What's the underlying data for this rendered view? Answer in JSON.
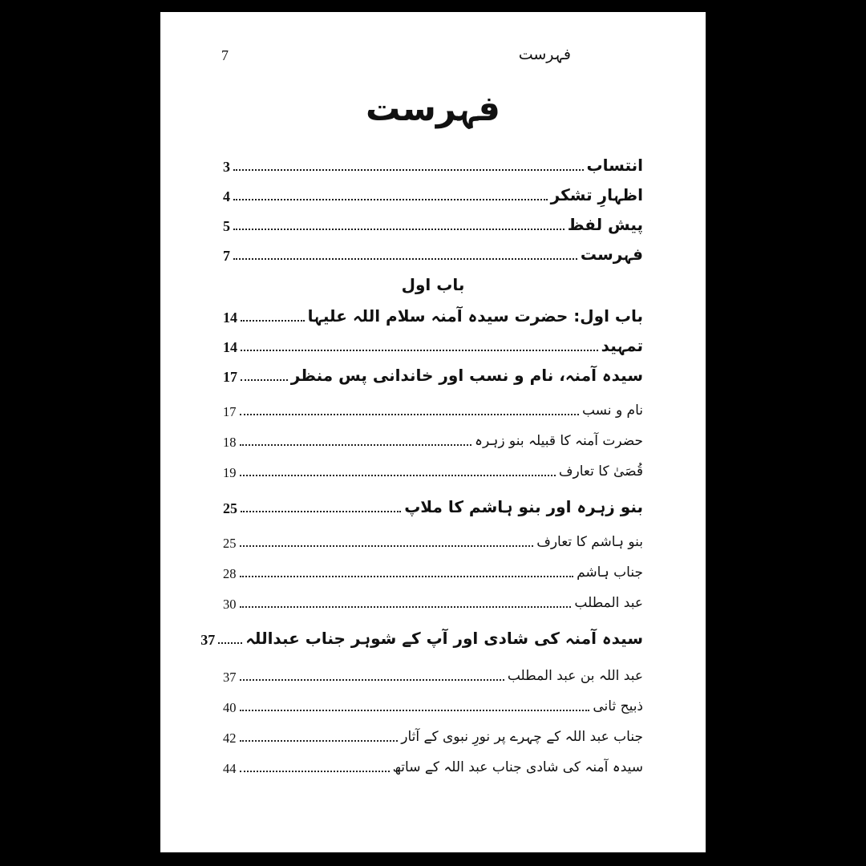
{
  "colors": {
    "backdrop": "#000000",
    "paper": "#ffffff",
    "ink": "#111111"
  },
  "header": {
    "running_title": "فہرست",
    "page_number": "7"
  },
  "title": "فہرست",
  "toc": {
    "chapter_heading": "باب اول",
    "entries": [
      {
        "label": "انتساب",
        "page": "3",
        "level": "main"
      },
      {
        "label": "اظہارِ تشکر",
        "page": "4",
        "level": "main"
      },
      {
        "label": "پیش لفظ",
        "page": "5",
        "level": "main"
      },
      {
        "label": "فہرست",
        "page": "7",
        "level": "main"
      },
      {
        "label": "باب اول: حضرت سیدہ آمنہ سلام اللہ علیہا",
        "page": "14",
        "level": "main"
      },
      {
        "label": "تمہید",
        "page": "14",
        "level": "main"
      },
      {
        "label": "سیدہ آمنہ، نام و نسب اور خاندانی پس منظر",
        "page": "17",
        "level": "main"
      },
      {
        "label": "نام و نسب",
        "page": "17",
        "level": "sub"
      },
      {
        "label": "حضرت آمنہ کا قبیلہ بنو زہرہ",
        "page": "18",
        "level": "sub"
      },
      {
        "label": "قُصَیٰ کا تعارف",
        "page": "19",
        "level": "sub"
      },
      {
        "label": "بنو زہرہ اور بنو ہاشم کا ملاپ",
        "page": "25",
        "level": "main"
      },
      {
        "label": "بنو ہاشم کا تعارف",
        "page": "25",
        "level": "sub"
      },
      {
        "label": "جناب ہاشم",
        "page": "28",
        "level": "sub"
      },
      {
        "label": "عبد المطلب",
        "page": "30",
        "level": "sub"
      },
      {
        "label": "سیدہ آمنہ کی شادی اور آپ کے شوہر جناب عبداللہ",
        "page": "37",
        "level": "main"
      },
      {
        "label": "عبد اللہ بن عبد المطلب",
        "page": "37",
        "level": "sub"
      },
      {
        "label": "ذبیح ثانی",
        "page": "40",
        "level": "sub"
      },
      {
        "label": "جناب عبد اللہ کے چہرے پر نورِ نبوی کے آثار",
        "page": "42",
        "level": "sub"
      },
      {
        "label": "سیدہ آمنہ کی شادی جناب عبد اللہ کے ساتھ",
        "page": "44",
        "level": "sub"
      }
    ]
  }
}
